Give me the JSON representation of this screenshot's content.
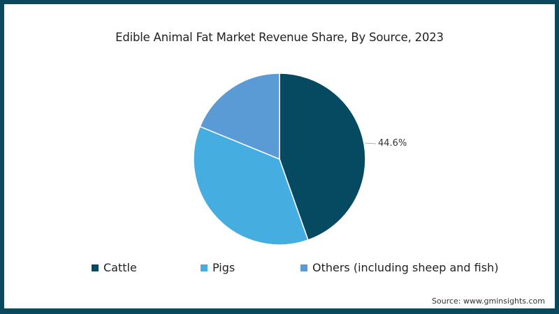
{
  "chart_data": {
    "type": "pie",
    "title": "Edible Animal Fat Market Revenue Share, By Source, 2023",
    "categories": [
      "Cattle",
      "Pigs",
      "Others (including sheep and fish)"
    ],
    "values": [
      44.6,
      36.6,
      18.8
    ],
    "colors": [
      "#064a62",
      "#46ade0",
      "#5b9bd5"
    ],
    "data_labels": [
      {
        "category": "Cattle",
        "text": "44.6%"
      }
    ],
    "legend_position": "bottom",
    "start_angle_deg": 0,
    "direction": "clockwise",
    "source": "Source: www.gminsights.com"
  },
  "title": "Edible Animal Fat Market Revenue Share, By Source, 2023",
  "data_label": "44.6%",
  "legend": [
    {
      "label": "Cattle",
      "color": "#064a62"
    },
    {
      "label": "Pigs",
      "color": "#46ade0"
    },
    {
      "label": "Others (including sheep and fish)",
      "color": "#5b9bd5"
    }
  ],
  "source": "Source: www.gminsights.com",
  "frame_color": "#0b4a5e"
}
